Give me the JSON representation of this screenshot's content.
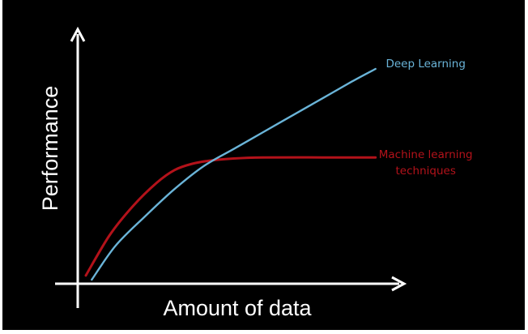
{
  "chart_data": {
    "type": "line",
    "title": "",
    "xlabel": "Amount of data",
    "ylabel": "Performance",
    "xlim": [
      0,
      100
    ],
    "ylim": [
      0,
      100
    ],
    "grid": false,
    "legend": "inline labels at line ends",
    "colors": {
      "background": "#000000",
      "axis": "#ffffff",
      "deep_learning": "#6ab4d8",
      "machine_learning": "#b3121a"
    },
    "series": [
      {
        "name": "Deep Learning",
        "label_lines": [
          "Deep Learning"
        ],
        "color": "#6ab4d8",
        "x": [
          2,
          10,
          20,
          30,
          40,
          50,
          60,
          70,
          80,
          90,
          98
        ],
        "y": [
          0,
          16,
          30,
          43,
          54,
          62,
          70,
          78,
          86,
          94,
          100
        ]
      },
      {
        "name": "Machine learning techniques",
        "label_lines": [
          "Machine learning",
          "techniques"
        ],
        "color": "#b3121a",
        "x": [
          0,
          8,
          16,
          24,
          30,
          36,
          42,
          50,
          60,
          80,
          98
        ],
        "y": [
          2,
          21,
          35,
          46,
          52,
          55,
          56.5,
          57.5,
          58,
          58,
          58
        ]
      }
    ]
  }
}
